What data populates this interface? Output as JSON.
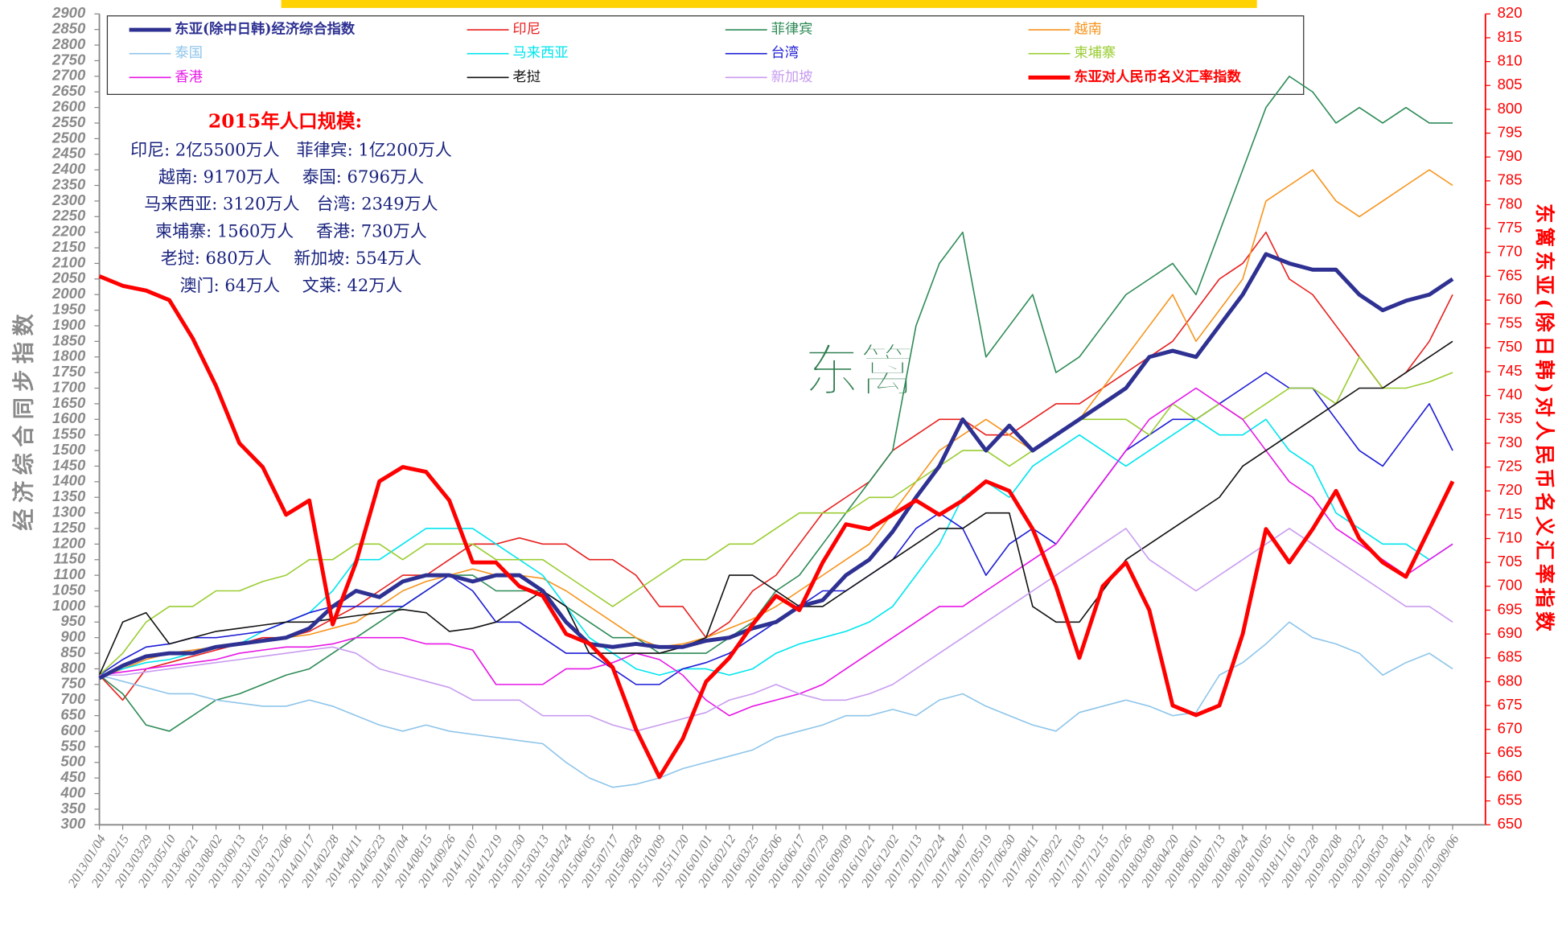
{
  "chart_data": {
    "type": "line",
    "y_label": "经济综合同步指数",
    "y2_label": "东篱东亚(除日韩)对人民币名义汇率指数",
    "watermark": "东篱",
    "annotation_title": "2015年人口规模:",
    "annotation_lines": [
      "印尼: 2亿5500万人　菲律宾: 1亿200万人",
      "越南: 9170万人　 泰国: 6796万人",
      "马来西亚: 3120万人　台湾: 2349万人",
      "柬埔寨: 1560万人　 香港: 730万人",
      "老挝: 680万人　 新加坡: 554万人",
      "澳门: 64万人　 文莱: 42万人"
    ],
    "categories": [
      "2013/01/04",
      "2013/02/15",
      "2013/03/29",
      "2013/05/10",
      "2013/06/21",
      "2013/08/02",
      "2013/09/13",
      "2013/10/25",
      "2013/12/06",
      "2014/01/17",
      "2014/02/28",
      "2014/04/11",
      "2014/05/23",
      "2014/07/04",
      "2014/08/15",
      "2014/09/26",
      "2014/11/07",
      "2014/12/19",
      "2015/01/30",
      "2015/03/13",
      "2015/04/24",
      "2015/06/05",
      "2015/07/17",
      "2015/08/28",
      "2015/10/09",
      "2015/11/20",
      "2016/01/01",
      "2016/02/12",
      "2016/03/25",
      "2016/05/06",
      "2016/06/17",
      "2016/07/29",
      "2016/09/09",
      "2016/10/21",
      "2016/12/02",
      "2017/01/13",
      "2017/02/24",
      "2017/04/07",
      "2017/05/19",
      "2017/06/30",
      "2017/08/11",
      "2017/09/22",
      "2017/11/03",
      "2017/12/15",
      "2018/01/26",
      "2018/03/09",
      "2018/04/20",
      "2018/06/01",
      "2018/07/13",
      "2018/08/24",
      "2018/10/05",
      "2018/11/16",
      "2018/12/28",
      "2019/02/08",
      "2019/03/22",
      "2019/05/03",
      "2019/06/14",
      "2019/07/26",
      "2019/09/06"
    ],
    "ylim": [
      300,
      2900
    ],
    "yticks": [
      300,
      350,
      400,
      450,
      500,
      550,
      600,
      650,
      700,
      750,
      800,
      850,
      900,
      950,
      1000,
      1050,
      1100,
      1150,
      1200,
      1250,
      1300,
      1350,
      1400,
      1450,
      1500,
      1550,
      1600,
      1650,
      1700,
      1750,
      1800,
      1850,
      1900,
      1950,
      2000,
      2050,
      2100,
      2150,
      2200,
      2250,
      2300,
      2350,
      2400,
      2450,
      2500,
      2550,
      2600,
      2650,
      2700,
      2750,
      2800,
      2850,
      2900
    ],
    "y2lim": [
      650,
      820
    ],
    "y2ticks": [
      650,
      655,
      660,
      665,
      670,
      675,
      680,
      685,
      690,
      695,
      700,
      705,
      710,
      715,
      720,
      725,
      730,
      735,
      740,
      745,
      750,
      755,
      760,
      765,
      770,
      775,
      780,
      785,
      790,
      795,
      800,
      805,
      810,
      815,
      820
    ],
    "series": [
      {
        "name": "东亚(除中日韩)经济综合指数",
        "color": "#2e3192",
        "width": 4,
        "values": [
          770,
          810,
          840,
          850,
          850,
          870,
          880,
          890,
          900,
          930,
          1000,
          1050,
          1030,
          1080,
          1100,
          1100,
          1080,
          1100,
          1100,
          1050,
          950,
          880,
          870,
          880,
          870,
          870,
          890,
          900,
          930,
          950,
          1000,
          1020,
          1100,
          1150,
          1240,
          1350,
          1450,
          1600,
          1500,
          1580,
          1500,
          1550,
          1600,
          1650,
          1700,
          1800,
          1820,
          1800,
          1900,
          2000,
          2130,
          2100,
          2080,
          2080,
          2000,
          1950,
          1980,
          2000,
          2050
        ]
      },
      {
        "name": "印尼",
        "color": "#e8201f",
        "width": 1.3,
        "values": [
          780,
          700,
          800,
          820,
          840,
          860,
          880,
          900,
          900,
          920,
          960,
          1000,
          1050,
          1100,
          1100,
          1150,
          1200,
          1200,
          1220,
          1200,
          1200,
          1150,
          1150,
          1100,
          1000,
          1000,
          900,
          950,
          1050,
          1100,
          1200,
          1300,
          1350,
          1400,
          1500,
          1550,
          1600,
          1600,
          1550,
          1550,
          1600,
          1650,
          1650,
          1700,
          1750,
          1800,
          1850,
          1950,
          2050,
          2100,
          2200,
          2050,
          2000,
          1900,
          1800,
          1700,
          1750,
          1850,
          2000
        ]
      },
      {
        "name": "菲律宾",
        "color": "#2e8b57",
        "width": 1.3,
        "values": [
          780,
          720,
          620,
          600,
          650,
          700,
          720,
          750,
          780,
          800,
          850,
          900,
          950,
          1000,
          1050,
          1100,
          1100,
          1050,
          1050,
          1050,
          1000,
          950,
          900,
          900,
          850,
          850,
          850,
          900,
          950,
          1050,
          1100,
          1200,
          1300,
          1400,
          1500,
          1900,
          2100,
          2200,
          1800,
          1900,
          2000,
          1750,
          1800,
          1900,
          2000,
          2050,
          2100,
          2000,
          2200,
          2400,
          2600,
          2700,
          2650,
          2550,
          2600,
          2550,
          2600,
          2550,
          2550
        ]
      },
      {
        "name": "越南",
        "color": "#f7941d",
        "width": 1.3,
        "values": [
          770,
          800,
          830,
          850,
          860,
          870,
          880,
          890,
          900,
          910,
          930,
          950,
          1000,
          1050,
          1080,
          1100,
          1120,
          1100,
          1100,
          1090,
          1050,
          1000,
          950,
          900,
          870,
          880,
          900,
          930,
          960,
          1000,
          1050,
          1100,
          1150,
          1200,
          1300,
          1400,
          1500,
          1550,
          1600,
          1550,
          1500,
          1550,
          1600,
          1700,
          1800,
          1900,
          2000,
          1850,
          1950,
          2050,
          2300,
          2350,
          2400,
          2300,
          2250,
          2300,
          2350,
          2400,
          2350
        ]
      },
      {
        "name": "泰国",
        "color": "#8ec5ea",
        "width": 1.3,
        "values": [
          780,
          760,
          740,
          720,
          720,
          700,
          690,
          680,
          680,
          700,
          680,
          650,
          620,
          600,
          620,
          600,
          590,
          580,
          570,
          560,
          500,
          450,
          420,
          430,
          450,
          480,
          500,
          520,
          540,
          580,
          600,
          620,
          650,
          650,
          670,
          650,
          700,
          720,
          680,
          650,
          620,
          600,
          660,
          680,
          700,
          680,
          650,
          660,
          780,
          820,
          880,
          950,
          900,
          880,
          850,
          780,
          820,
          850,
          800
        ]
      },
      {
        "name": "马来西亚",
        "color": "#00e5ee",
        "width": 1.3,
        "values": [
          780,
          800,
          820,
          830,
          850,
          870,
          880,
          920,
          950,
          980,
          1050,
          1150,
          1150,
          1200,
          1250,
          1250,
          1250,
          1200,
          1150,
          1100,
          1000,
          900,
          850,
          800,
          780,
          800,
          800,
          780,
          800,
          850,
          880,
          900,
          920,
          950,
          1000,
          1100,
          1200,
          1350,
          1400,
          1350,
          1450,
          1500,
          1550,
          1500,
          1450,
          1500,
          1550,
          1600,
          1550,
          1550,
          1600,
          1500,
          1450,
          1300,
          1250,
          1200,
          1200,
          1150,
          1200
        ]
      },
      {
        "name": "台湾",
        "color": "#1c1cd6",
        "width": 1.3,
        "values": [
          780,
          830,
          870,
          880,
          900,
          900,
          910,
          920,
          950,
          980,
          1000,
          1000,
          1000,
          1000,
          1050,
          1100,
          1050,
          950,
          950,
          900,
          850,
          850,
          800,
          750,
          750,
          800,
          820,
          850,
          900,
          950,
          1000,
          1050,
          1050,
          1100,
          1150,
          1250,
          1300,
          1250,
          1100,
          1200,
          1250,
          1200,
          1300,
          1400,
          1500,
          1550,
          1600,
          1600,
          1650,
          1700,
          1750,
          1700,
          1700,
          1600,
          1500,
          1450,
          1550,
          1650,
          1500
        ]
      },
      {
        "name": "柬埔寨",
        "color": "#9acd32",
        "width": 1.3,
        "values": [
          780,
          850,
          950,
          1000,
          1000,
          1050,
          1050,
          1080,
          1100,
          1150,
          1150,
          1200,
          1200,
          1150,
          1200,
          1200,
          1200,
          1150,
          1150,
          1150,
          1100,
          1050,
          1000,
          1050,
          1100,
          1150,
          1150,
          1200,
          1200,
          1250,
          1300,
          1300,
          1300,
          1350,
          1350,
          1400,
          1450,
          1500,
          1500,
          1450,
          1500,
          1550,
          1600,
          1600,
          1600,
          1550,
          1650,
          1600,
          1650,
          1600,
          1650,
          1700,
          1700,
          1650,
          1800,
          1700,
          1700,
          1720,
          1750
        ]
      },
      {
        "name": "香港",
        "color": "#e617e6",
        "width": 1.3,
        "values": [
          780,
          790,
          800,
          810,
          820,
          830,
          850,
          860,
          870,
          870,
          880,
          900,
          900,
          900,
          880,
          880,
          860,
          750,
          750,
          750,
          800,
          800,
          820,
          850,
          830,
          780,
          700,
          650,
          680,
          700,
          720,
          750,
          800,
          850,
          900,
          950,
          1000,
          1000,
          1050,
          1100,
          1150,
          1200,
          1300,
          1400,
          1500,
          1600,
          1650,
          1700,
          1650,
          1600,
          1500,
          1400,
          1350,
          1250,
          1200,
          1150,
          1100,
          1150,
          1200
        ]
      },
      {
        "name": "老挝",
        "color": "#111111",
        "width": 1.3,
        "values": [
          780,
          950,
          980,
          880,
          900,
          920,
          930,
          940,
          950,
          950,
          960,
          970,
          980,
          990,
          980,
          920,
          930,
          950,
          1000,
          1050,
          1000,
          850,
          850,
          850,
          850,
          870,
          900,
          1100,
          1100,
          1050,
          1000,
          1000,
          1050,
          1100,
          1150,
          1200,
          1250,
          1250,
          1300,
          1300,
          1000,
          950,
          950,
          1050,
          1150,
          1200,
          1250,
          1300,
          1350,
          1450,
          1500,
          1550,
          1600,
          1650,
          1700,
          1700,
          1750,
          1800,
          1850
        ]
      },
      {
        "name": "新加坡",
        "color": "#c89cf0",
        "width": 1.3,
        "values": [
          780,
          780,
          790,
          800,
          810,
          820,
          830,
          840,
          850,
          860,
          870,
          850,
          800,
          780,
          760,
          740,
          700,
          700,
          700,
          650,
          650,
          650,
          620,
          600,
          620,
          640,
          660,
          700,
          720,
          750,
          720,
          700,
          700,
          720,
          750,
          800,
          850,
          900,
          950,
          1000,
          1050,
          1100,
          1150,
          1200,
          1250,
          1150,
          1100,
          1050,
          1100,
          1150,
          1200,
          1250,
          1200,
          1150,
          1100,
          1050,
          1000,
          1000,
          950
        ]
      },
      {
        "name": "东亚对人民币名义汇率指数",
        "color": "#ff0000",
        "width": 4,
        "axis": "y2",
        "values": [
          765,
          763,
          762,
          760,
          752,
          742,
          730,
          725,
          715,
          718,
          692,
          705,
          722,
          725,
          724,
          718,
          705,
          705,
          700,
          698,
          690,
          688,
          683,
          670,
          660,
          668,
          680,
          685,
          692,
          698,
          695,
          705,
          713,
          712,
          715,
          718,
          715,
          718,
          722,
          720,
          712,
          700,
          685,
          700,
          705,
          695,
          675,
          673,
          675,
          690,
          712,
          705,
          712,
          720,
          710,
          705,
          702,
          712,
          722
        ]
      }
    ]
  }
}
